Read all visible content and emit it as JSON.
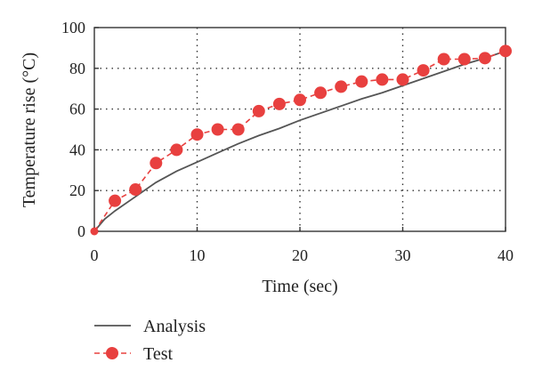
{
  "chart_data": {
    "type": "line",
    "xlabel": "Time (sec)",
    "ylabel": "Temperature rise (°C)",
    "xlim": [
      0,
      40
    ],
    "ylim": [
      0,
      100
    ],
    "xticks": [
      0,
      10,
      20,
      30,
      40
    ],
    "yticks": [
      0,
      20,
      40,
      60,
      80,
      100
    ],
    "grid": true,
    "legend_position": "bottom-left, below plot",
    "series": [
      {
        "name": "Analysis",
        "style": "solid line",
        "color": "#555555",
        "x": [
          0,
          1,
          2,
          4,
          6,
          8,
          10,
          12,
          14,
          16,
          18,
          20,
          22,
          24,
          26,
          28,
          30,
          32,
          34,
          36,
          38,
          40
        ],
        "values": [
          0,
          6,
          10,
          17,
          24,
          29.5,
          34,
          38.5,
          43,
          47,
          50.5,
          54.5,
          58,
          61.5,
          65,
          68,
          71.5,
          75,
          78.5,
          82,
          85,
          88.5
        ]
      },
      {
        "name": "Test",
        "style": "dashed line with circle markers",
        "color": "#e8403f",
        "x": [
          0,
          2,
          4,
          6,
          8,
          10,
          12,
          14,
          16,
          18,
          20,
          22,
          24,
          26,
          28,
          30,
          32,
          34,
          36,
          38,
          40
        ],
        "values": [
          0,
          15,
          20.5,
          33.5,
          40,
          47.5,
          50,
          50,
          59,
          62.5,
          64.5,
          68,
          71,
          73.5,
          74.5,
          74.5,
          79,
          84.5,
          84.5,
          85,
          88.5
        ]
      }
    ]
  }
}
